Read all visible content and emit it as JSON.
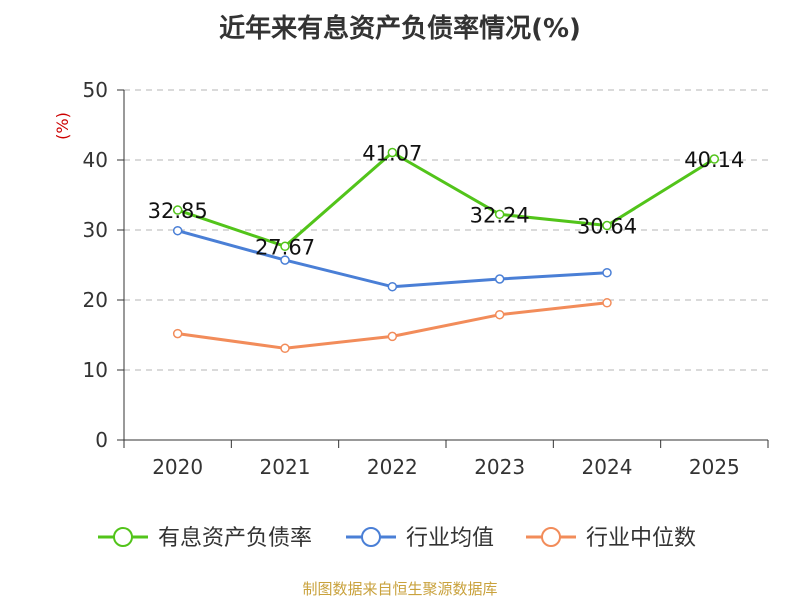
{
  "title": "近年来有息资产负债率情况(%)",
  "source": "制图数据来自恒生聚源数据库",
  "chart_data": {
    "type": "line",
    "title": "近年来有息资产负债率情况(%)",
    "ylabel": "(%)",
    "xlabel": "",
    "categories": [
      "2020",
      "2021",
      "2022",
      "2023",
      "2024",
      "2025"
    ],
    "ylim": [
      0,
      50
    ],
    "yticks": [
      0,
      10,
      20,
      30,
      40,
      50
    ],
    "grid": true,
    "legend_position": "bottom",
    "series": [
      {
        "name": "有息资产负债率",
        "color": "#52c41a",
        "values": [
          32.85,
          27.67,
          41.07,
          32.24,
          30.64,
          40.14
        ],
        "labels": [
          "32.85",
          "27.67",
          "41.07",
          "32.24",
          "30.64",
          "40.14"
        ]
      },
      {
        "name": "行业均值",
        "color": "#4a7fd6",
        "values": [
          29.9,
          25.7,
          21.9,
          23.0,
          23.9,
          null
        ]
      },
      {
        "name": "行业中位数",
        "color": "#f28c5a",
        "values": [
          15.2,
          13.1,
          14.8,
          17.9,
          19.6,
          null
        ]
      }
    ]
  }
}
